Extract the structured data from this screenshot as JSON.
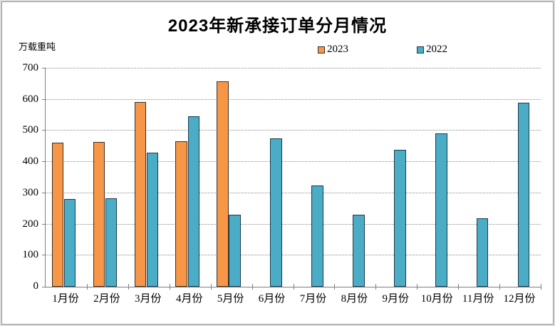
{
  "window": {
    "background": "#ffffff",
    "frame_border_color": "#959595"
  },
  "chart_data": {
    "type": "bar",
    "title": "2023年新承接订单分月情况",
    "ylabel": "万载重吨",
    "xlabel": "",
    "categories": [
      "1月份",
      "2月份",
      "3月份",
      "4月份",
      "5月份",
      "6月份",
      "7月份",
      "8月份",
      "9月份",
      "10月份",
      "11月份",
      "12月份"
    ],
    "series": [
      {
        "name": "2023",
        "color": "#F79646",
        "border_color": "#3a3028",
        "values": [
          462,
          464,
          593,
          467,
          658,
          null,
          null,
          null,
          null,
          null,
          null,
          null
        ]
      },
      {
        "name": "2022",
        "color": "#4BACC6",
        "border_color": "#1e3짜4a",
        "values": [
          281,
          283,
          429,
          547,
          230,
          475,
          325,
          231,
          439,
          492,
          219,
          591
        ]
      }
    ],
    "ylim": [
      0,
      700
    ],
    "yticks": [
      0,
      100,
      200,
      300,
      400,
      500,
      600,
      700
    ],
    "grid": "horizontal-dotted",
    "gridline_color": "#8c8c8c",
    "axis_color": "#7f7f7f",
    "legend_position": "top"
  }
}
